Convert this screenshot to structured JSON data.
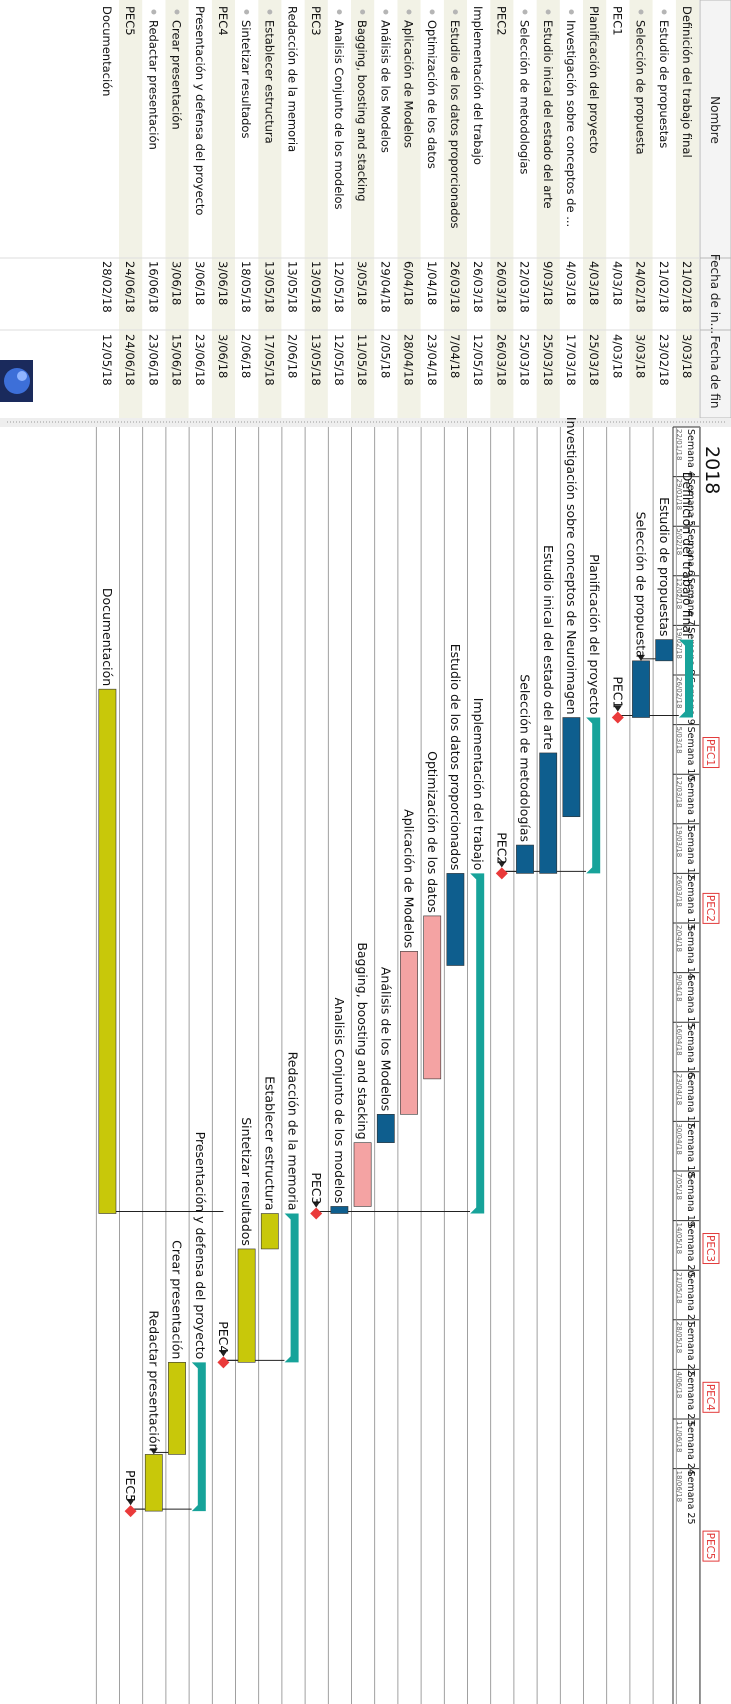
{
  "app": {
    "logo": "gantt-logo"
  },
  "table": {
    "headers": {
      "name": "Nombre",
      "start": "Fecha de in...",
      "end": "Fecha de fin"
    },
    "rows": [
      {
        "name": "Definición del trabajo final",
        "start": "21/02/18",
        "end": "3/03/18",
        "level": 0,
        "kind": "summary"
      },
      {
        "name": "Estudio de propuestas",
        "start": "21/02/18",
        "end": "23/02/18",
        "level": 1,
        "kind": "task"
      },
      {
        "name": "Selección de propuesta",
        "start": "24/02/18",
        "end": "3/03/18",
        "level": 1,
        "kind": "task"
      },
      {
        "name": "PEC1",
        "start": "4/03/18",
        "end": "4/03/18",
        "level": 0,
        "kind": "milestone"
      },
      {
        "name": "Planificación del  proyecto",
        "start": "4/03/18",
        "end": "25/03/18",
        "level": 0,
        "kind": "summary"
      },
      {
        "name": "Investigación sobre conceptos de ...",
        "start": "4/03/18",
        "end": "17/03/18",
        "level": 1,
        "kind": "task"
      },
      {
        "name": "Estudio inical del estado del arte",
        "start": "9/03/18",
        "end": "25/03/18",
        "level": 1,
        "kind": "task"
      },
      {
        "name": "Selección de metodologías",
        "start": "22/03/18",
        "end": "25/03/18",
        "level": 1,
        "kind": "task"
      },
      {
        "name": "PEC2",
        "start": "26/03/18",
        "end": "26/03/18",
        "level": 0,
        "kind": "milestone"
      },
      {
        "name": "Implementación del trabajo",
        "start": "26/03/18",
        "end": "12/05/18",
        "level": 0,
        "kind": "summary"
      },
      {
        "name": "Estudio de los datos proporcionados",
        "start": "26/03/18",
        "end": "7/04/18",
        "level": 1,
        "kind": "task"
      },
      {
        "name": "Optimización de los datos",
        "start": "1/04/18",
        "end": "23/04/18",
        "level": 1,
        "kind": "task"
      },
      {
        "name": "Aplicación de Modelos",
        "start": "6/04/18",
        "end": "28/04/18",
        "level": 1,
        "kind": "task"
      },
      {
        "name": "Análisis de los Modelos",
        "start": "29/04/18",
        "end": "2/05/18",
        "level": 1,
        "kind": "task"
      },
      {
        "name": "Bagging, boosting and stacking",
        "start": "3/05/18",
        "end": "11/05/18",
        "level": 1,
        "kind": "task"
      },
      {
        "name": "Analisis Conjunto de los modelos",
        "start": "12/05/18",
        "end": "12/05/18",
        "level": 1,
        "kind": "task"
      },
      {
        "name": "PEC3",
        "start": "13/05/18",
        "end": "13/05/18",
        "level": 0,
        "kind": "milestone"
      },
      {
        "name": "Redacción de la memoria",
        "start": "13/05/18",
        "end": "2/06/18",
        "level": 0,
        "kind": "summary"
      },
      {
        "name": "Establecer estructura",
        "start": "13/05/18",
        "end": "17/05/18",
        "level": 1,
        "kind": "task"
      },
      {
        "name": "Sintetizar resultados",
        "start": "18/05/18",
        "end": "2/06/18",
        "level": 1,
        "kind": "task"
      },
      {
        "name": "PEC4",
        "start": "3/06/18",
        "end": "3/06/18",
        "level": 0,
        "kind": "milestone"
      },
      {
        "name": "Presentación y defensa del proyecto",
        "start": "3/06/18",
        "end": "23/06/18",
        "level": 0,
        "kind": "summary"
      },
      {
        "name": "Crear presentación",
        "start": "3/06/18",
        "end": "15/06/18",
        "level": 1,
        "kind": "task"
      },
      {
        "name": "Redactar presentación",
        "start": "16/06/18",
        "end": "23/06/18",
        "level": 1,
        "kind": "task"
      },
      {
        "name": "PEC5",
        "start": "24/06/18",
        "end": "24/06/18",
        "level": 0,
        "kind": "milestone"
      },
      {
        "name": "Documentación",
        "start": "28/02/18",
        "end": "12/05/18",
        "level": 0,
        "kind": "task"
      }
    ]
  },
  "chart": {
    "year": "2018",
    "weeks": [
      {
        "label": "Semana 4",
        "date": "22/01/18"
      },
      {
        "label": "Semana 5",
        "date": "29/01/18"
      },
      {
        "label": "Semana 6",
        "date": "5/02/18"
      },
      {
        "label": "Semana 7",
        "date": "12/02/18"
      },
      {
        "label": "Semana 8",
        "date": "19/02/18"
      },
      {
        "label": "Semana 9",
        "date": "26/02/18"
      },
      {
        "label": "Semana 10",
        "date": "5/03/18"
      },
      {
        "label": "Semana 11",
        "date": "12/03/18"
      },
      {
        "label": "Semana 12",
        "date": "19/03/18"
      },
      {
        "label": "Semana 13",
        "date": "26/03/18"
      },
      {
        "label": "Semana 14",
        "date": "2/04/18"
      },
      {
        "label": "Semana 15",
        "date": "9/04/18"
      },
      {
        "label": "Semana 16",
        "date": "16/04/18"
      },
      {
        "label": "Semana 17",
        "date": "23/04/18"
      },
      {
        "label": "Semana 18",
        "date": "30/04/18"
      },
      {
        "label": "Semana 19",
        "date": "7/05/18"
      },
      {
        "label": "Semana 20",
        "date": "14/05/18"
      },
      {
        "label": "Semana 21",
        "date": "21/05/18"
      },
      {
        "label": "Semana 22",
        "date": "28/05/18"
      },
      {
        "label": "Semana 23",
        "date": "4/06/18"
      },
      {
        "label": "Semana 24",
        "date": "11/06/18"
      },
      {
        "label": "Semana 25",
        "date": "18/06/18"
      }
    ],
    "header_markers": [
      {
        "label": "PEC1",
        "date": "4/03/18"
      },
      {
        "label": "PEC2",
        "date": "26/03/18"
      },
      {
        "label": "PEC3",
        "date": "13/05/18"
      },
      {
        "label": "PEC4",
        "date": "3/06/18"
      },
      {
        "label": "PEC5",
        "date": "24/06/18"
      }
    ],
    "colors": {
      "summary": "#17a39a",
      "blue": "#0e5e8e",
      "pink": "#f4a3a3",
      "olive": "#c8c80a",
      "milestone": "#ea3a3a",
      "marker": "#e23b3b"
    },
    "bars": [
      {
        "row": 0,
        "color": "summary",
        "label": "Definición del trabajo final"
      },
      {
        "row": 1,
        "color": "blue",
        "label": "Estudio de propuestas"
      },
      {
        "row": 2,
        "color": "blue",
        "label": "Selección de propuesta"
      },
      {
        "row": 3,
        "color": "milestone",
        "label": "PEC1"
      },
      {
        "row": 4,
        "color": "summary",
        "label": "Planificación del  proyecto"
      },
      {
        "row": 5,
        "color": "blue",
        "label": "Investigación sobre conceptos de Neuroimagen"
      },
      {
        "row": 6,
        "color": "blue",
        "label": "Estudio inical del estado del arte"
      },
      {
        "row": 7,
        "color": "blue",
        "label": "Selección de metodologías"
      },
      {
        "row": 8,
        "color": "milestone",
        "label": "PEC2"
      },
      {
        "row": 9,
        "color": "summary",
        "label": "Implementación del trabajo"
      },
      {
        "row": 10,
        "color": "blue",
        "label": "Estudio de los datos proporcionados"
      },
      {
        "row": 11,
        "color": "pink",
        "label": "Optimización de los datos"
      },
      {
        "row": 12,
        "color": "pink",
        "label": "Aplicación de Modelos"
      },
      {
        "row": 13,
        "color": "blue",
        "label": "Análisis de los Modelos"
      },
      {
        "row": 14,
        "color": "pink",
        "label": "Bagging, boosting and stacking"
      },
      {
        "row": 15,
        "color": "blue",
        "label": "Analisis Conjunto de los modelos"
      },
      {
        "row": 16,
        "color": "milestone",
        "label": "PEC3"
      },
      {
        "row": 17,
        "color": "summary",
        "label": "Redacción de la memoria"
      },
      {
        "row": 18,
        "color": "olive",
        "label": "Establecer estructura"
      },
      {
        "row": 19,
        "color": "olive",
        "label": "Sintetizar resultados"
      },
      {
        "row": 20,
        "color": "milestone",
        "label": "PEC4"
      },
      {
        "row": 21,
        "color": "summary",
        "label": "Presentación y defensa del proyecto"
      },
      {
        "row": 22,
        "color": "olive",
        "label": "Crear presentación"
      },
      {
        "row": 23,
        "color": "olive",
        "label": "Redactar presentación"
      },
      {
        "row": 24,
        "color": "milestone",
        "label": "PEC5"
      },
      {
        "row": 25,
        "color": "olive",
        "label": "Documentación"
      }
    ]
  }
}
